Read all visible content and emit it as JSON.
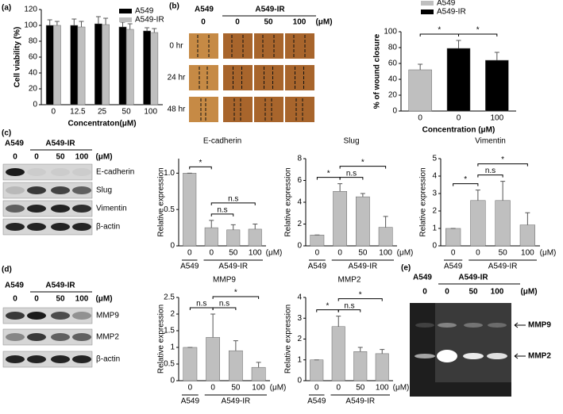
{
  "panel_labels": [
    "(a)",
    "(b)",
    "(c)",
    "(d)",
    "(e)"
  ],
  "chart_data": [
    {
      "type": "bar",
      "ylabel": "Cell viability (%)",
      "xlabel": "Concentraton(μM)",
      "categories": [
        "0",
        "12.5",
        "25",
        "50",
        "100"
      ],
      "series": [
        {
          "name": "A549",
          "color": "#000000",
          "values": [
            100,
            100,
            102,
            98,
            93
          ],
          "errors": [
            7,
            8,
            9,
            6,
            4
          ]
        },
        {
          "name": "A549-IR",
          "color": "#bfbfbf",
          "values": [
            100,
            98,
            101,
            95,
            91
          ],
          "errors": [
            5,
            7,
            8,
            7,
            5
          ]
        }
      ],
      "ylim": [
        0,
        120
      ],
      "yticks": [
        0,
        20,
        40,
        60,
        80,
        100,
        120
      ],
      "legend": "upper right"
    },
    {
      "type": "bar",
      "ylabel": "% of wound closure",
      "xlabel": "Concentration (μM)",
      "categories": [
        "0",
        "0",
        "100"
      ],
      "series": [
        {
          "name": "A549",
          "color": "#bfbfbf",
          "values": [
            52,
            null,
            null
          ],
          "errors": [
            7,
            null,
            null
          ]
        },
        {
          "name": "A549-IR",
          "color": "#000000",
          "values": [
            null,
            79,
            64
          ],
          "errors": [
            null,
            10,
            10
          ]
        }
      ],
      "ylim": [
        0,
        100
      ],
      "yticks": [
        0,
        20,
        40,
        60,
        80,
        100
      ],
      "annotations": [
        "*",
        "*"
      ],
      "legend": "upper left"
    },
    {
      "type": "bar",
      "title": "E-cadherin",
      "ylabel": "Relative expression",
      "categories": [
        "0",
        "0",
        "50",
        "100"
      ],
      "unit": "(μM)",
      "groups": [
        "A549",
        "A549-IR"
      ],
      "values": [
        1,
        0.25,
        0.22,
        0.23
      ],
      "errors": [
        0,
        0.1,
        0.07,
        0.07
      ],
      "color": "#bfbfbf",
      "ylim": [
        0,
        1.2
      ],
      "yticks": [
        0,
        0.5,
        {
          "value": 1,
          "label": "1.0"
        }
      ],
      "annotations": [
        "*",
        "n.s",
        "n.s"
      ]
    },
    {
      "type": "bar",
      "title": "Slug",
      "ylabel": "Relative expression",
      "categories": [
        "0",
        "0",
        "50",
        "100"
      ],
      "unit": "(μM)",
      "groups": [
        "A549",
        "A549-IR"
      ],
      "values": [
        1,
        5,
        4.5,
        1.7
      ],
      "errors": [
        0,
        0.7,
        0.3,
        1
      ],
      "color": "#bfbfbf",
      "ylim": [
        0,
        8
      ],
      "yticks": [
        0,
        2,
        4,
        6,
        8
      ],
      "annotations": [
        "*",
        "n.s",
        "*"
      ]
    },
    {
      "type": "bar",
      "title": "Vimentin",
      "ylabel": "Relative expression",
      "categories": [
        "0",
        "0",
        "50",
        "100"
      ],
      "unit": "(μM)",
      "groups": [
        "A549",
        "A549-IR"
      ],
      "values": [
        1,
        2.6,
        2.6,
        1.2
      ],
      "errors": [
        0,
        0.6,
        1.1,
        0.7
      ],
      "color": "#bfbfbf",
      "ylim": [
        0,
        5
      ],
      "yticks": [
        0,
        1,
        2,
        3,
        4,
        5
      ],
      "annotations": [
        "*",
        "n.s",
        "*"
      ]
    },
    {
      "type": "bar",
      "title": "MMP9",
      "ylabel": "Relative expression",
      "categories": [
        "0",
        "0",
        "50",
        "100"
      ],
      "unit": "(μM)",
      "groups": [
        "A549",
        "A549-IR"
      ],
      "values": [
        1,
        1.3,
        0.9,
        0.4
      ],
      "errors": [
        0,
        0.7,
        0.3,
        0.15
      ],
      "color": "#bfbfbf",
      "ylim": [
        0,
        2.5
      ],
      "yticks": [
        0,
        0.5,
        1,
        1.5,
        2,
        2.5
      ],
      "annotations": [
        "n.s",
        "n.s",
        "*"
      ]
    },
    {
      "type": "bar",
      "title": "MMP2",
      "ylabel": "Relative expression",
      "categories": [
        "0",
        "0",
        "50",
        "100"
      ],
      "unit": "(μM)",
      "groups": [
        "A549",
        "A549-IR"
      ],
      "values": [
        1,
        2.6,
        1.4,
        1.3
      ],
      "errors": [
        0,
        0.5,
        0.2,
        0.2
      ],
      "color": "#bfbfbf",
      "ylim": [
        0,
        4
      ],
      "yticks": [
        0,
        1,
        2,
        3,
        4
      ],
      "annotations": [
        "*",
        "n.s",
        "*"
      ]
    }
  ],
  "wound_assay": {
    "group_labels": [
      "A549",
      "A549-IR"
    ],
    "concentrations": [
      "0",
      "0",
      "50",
      "100"
    ],
    "unit": "(μM)",
    "times": [
      "0 hr",
      "24 hr",
      "48 hr"
    ]
  },
  "western_c": {
    "group_labels": [
      "A549",
      "A549-IR"
    ],
    "concentrations": [
      "0",
      "0",
      "50",
      "100"
    ],
    "unit": "(μM)",
    "bands": [
      "E-cadherin",
      "Slug",
      "Vimentin",
      "β-actin"
    ]
  },
  "western_d": {
    "group_labels": [
      "A549",
      "A549-IR"
    ],
    "concentrations": [
      "0",
      "0",
      "50",
      "100"
    ],
    "unit": "(μM)",
    "bands": [
      "MMP9",
      "MMP2",
      "β-actin"
    ]
  },
  "zymography": {
    "group_labels": [
      "A549",
      "A549-IR"
    ],
    "concentrations": [
      "0",
      "0",
      "50",
      "100"
    ],
    "unit": "(μM)",
    "bands": [
      "MMP9",
      "MMP2"
    ]
  }
}
